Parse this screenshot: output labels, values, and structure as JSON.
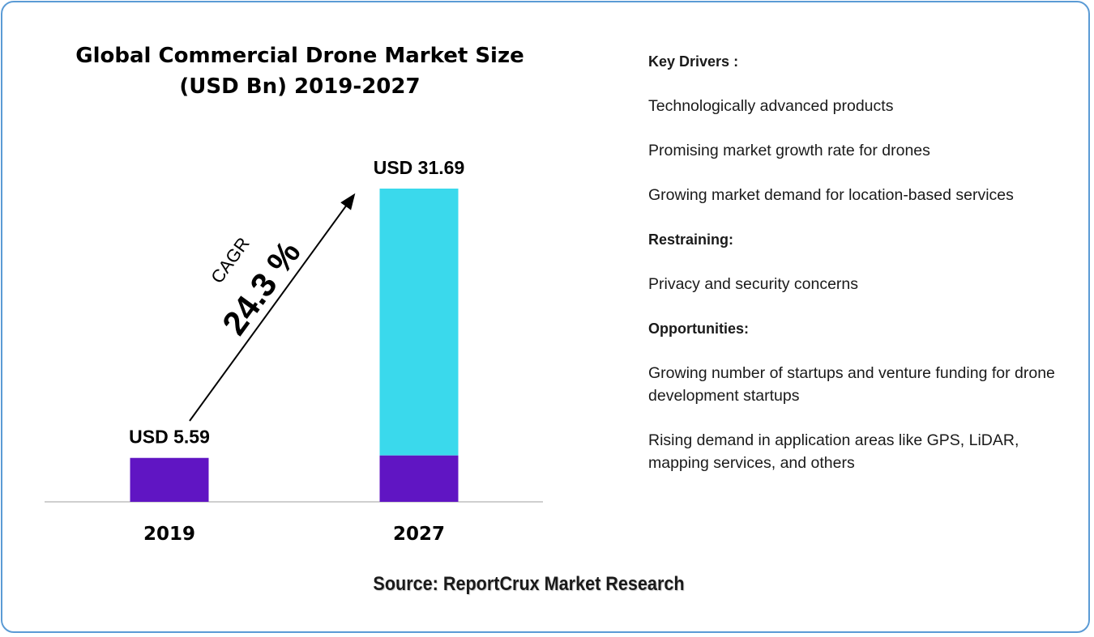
{
  "chart_data": {
    "type": "bar",
    "title": "Global Commercial Drone Market Size (USD Bn) 2019-2027",
    "categories": [
      "2019",
      "2027"
    ],
    "values": [
      5.59,
      31.69
    ],
    "data_labels": [
      "USD 5.59",
      "USD 31.69"
    ],
    "ylim": [
      0,
      33
    ],
    "grid": false,
    "cagr_label": "CAGR",
    "cagr_value": "24.3 %",
    "colors": {
      "base": "#6015c3",
      "growth": "#3ad9ec",
      "axis": "#bfbfbf",
      "arrow": "#000000"
    }
  },
  "side_panel": {
    "items": [
      {
        "text": "Key Drivers :",
        "heading": true
      },
      {
        "text": "Technologically advanced products",
        "heading": false
      },
      {
        "text": "Promising market growth rate for drones",
        "heading": false
      },
      {
        "text": "Growing market demand for location-based services",
        "heading": false
      },
      {
        "text": "Restraining:",
        "heading": true
      },
      {
        "text": "Privacy and security concerns",
        "heading": false
      },
      {
        "text": "Opportunities:",
        "heading": true
      },
      {
        "text": "Growing number of startups and venture funding for drone development startups",
        "heading": false
      },
      {
        "text": "Rising demand in application areas like GPS, LiDAR, mapping services, and others",
        "heading": false
      }
    ]
  },
  "source": "Source: ReportCrux Market Research",
  "colors": {
    "frame_border": "#5b9bd5"
  }
}
